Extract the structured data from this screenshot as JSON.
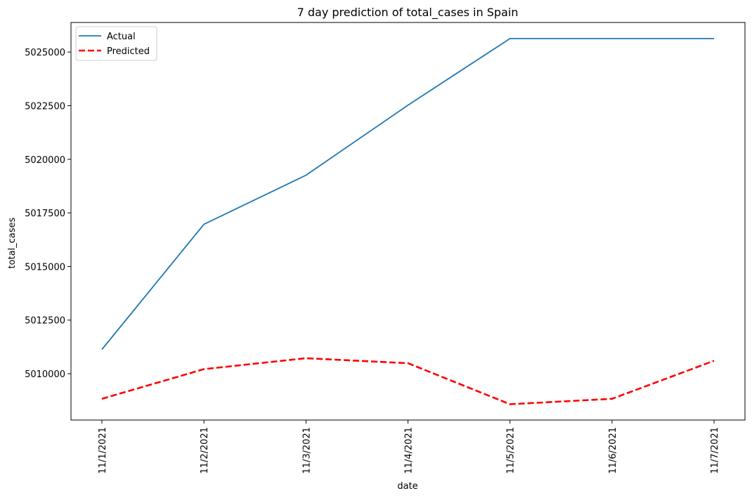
{
  "chart_data": {
    "type": "line",
    "title": "7 day prediction of total_cases in Spain",
    "xlabel": "date",
    "ylabel": "total_cases",
    "categories": [
      "11/1/2021",
      "11/2/2021",
      "11/3/2021",
      "11/4/2021",
      "11/5/2021",
      "11/6/2021",
      "11/7/2021"
    ],
    "yticks": [
      5010000,
      5012500,
      5015000,
      5017500,
      5020000,
      5022500,
      5025000
    ],
    "ytick_labels": [
      "5010000",
      "5012500",
      "5015000",
      "5017500",
      "5020000",
      "5022500",
      "5025000"
    ],
    "ylim": [
      5007840,
      5026380
    ],
    "series": [
      {
        "name": "Actual",
        "color": "#1f77b4",
        "style": "solid",
        "values": [
          5011133,
          5016970,
          5019256,
          5022526,
          5025631,
          5025631,
          5025631
        ]
      },
      {
        "name": "Predicted",
        "color": "#ff0000",
        "style": "dashed",
        "values": [
          5008829,
          5010214,
          5010723,
          5010489,
          5008578,
          5008829,
          5010605
        ]
      }
    ],
    "legend_position": "upper-left",
    "grid": false
  }
}
